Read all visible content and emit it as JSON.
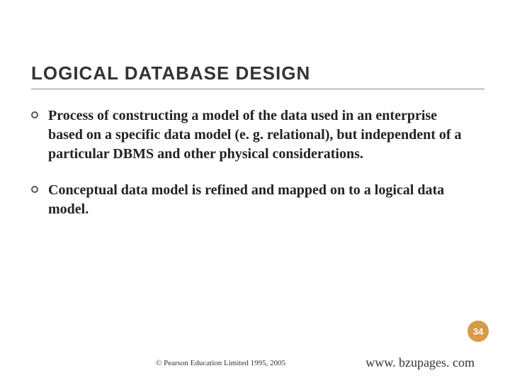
{
  "title": {
    "text": "LOGICAL DATABASE DESIGN",
    "fontsize": 26,
    "color": "#333333",
    "underline_color": "#888888"
  },
  "bullets": [
    {
      "text": "Process of constructing a model of the data used in an enterprise based on a specific data model (e. g. relational), but independent of a particular DBMS and other physical considerations."
    },
    {
      "text": "Conceptual data model is refined and mapped on to a logical data model."
    }
  ],
  "bullet_style": {
    "fontsize": 20,
    "color": "#222222",
    "icon_border_color": "#555555"
  },
  "page_number": {
    "value": "34",
    "fontsize": 13,
    "background_color": "#d79a4a",
    "text_color": "#ffffff"
  },
  "copyright": {
    "text": "© Pearson Education Limited 1995, 2005",
    "fontsize": 11
  },
  "url": {
    "text": "www. bzupages. com",
    "fontsize": 18
  },
  "background_color": "#ffffff"
}
